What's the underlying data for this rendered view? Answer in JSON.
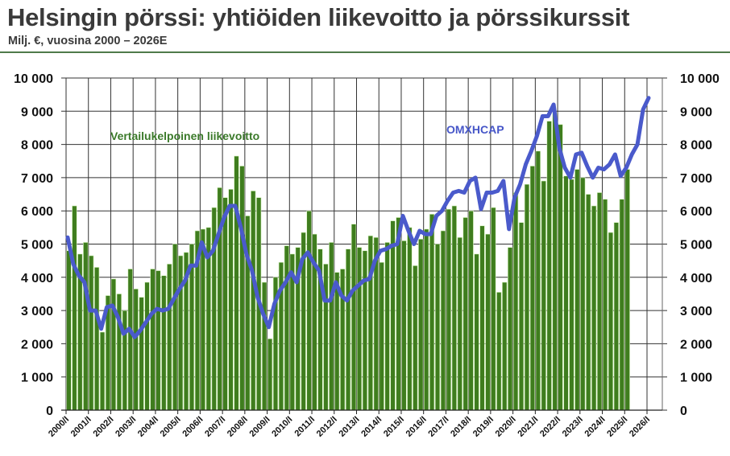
{
  "header": {
    "title": "Helsingin pörssi: yhtiöiden liikevoitto ja pörssikurssit",
    "subtitle": "Milj. €, vuosina 2000 – 2026E"
  },
  "colors": {
    "bar": "#3f7d1e",
    "bar_edge": "#d8f5c0",
    "line": "#4a5acb",
    "grid": "#333333",
    "title": "#3a3a3a",
    "rule": "#4f7a4a"
  },
  "chart_data": {
    "type": "bar+line",
    "title": "Helsingin pörssi: yhtiöiden liikevoitto ja pörssikurssit",
    "subtitle": "Milj. €, vuosina 2000 – 2026E",
    "xlabel": "",
    "ylabel_left": "",
    "ylabel_right": "",
    "ylim": [
      0,
      10000
    ],
    "y2lim": [
      0,
      10000
    ],
    "yticks": [
      "0",
      "1 000",
      "2 000",
      "3 000",
      "4 000",
      "5 000",
      "6 000",
      "7 000",
      "8 000",
      "9 000",
      "10 000"
    ],
    "grid": true,
    "x_tick_labels": [
      "2000/I",
      "2001/I",
      "2002/I",
      "2003/I",
      "2004/I",
      "2005/I",
      "2006/I",
      "2007/I",
      "2008/I",
      "2009/I",
      "2010/I",
      "2011/I",
      "2012/I",
      "2013/I",
      "2014/I",
      "2015/I",
      "2016/I",
      "2017/I",
      "2018/I",
      "2019/I",
      "2020/I",
      "2021/I",
      "2022/I",
      "2023/I",
      "2024/I",
      "2025/I",
      "2026/I"
    ],
    "annotations": [
      {
        "text": "Vertailukelpoinen liikevoitto",
        "series": "bars"
      },
      {
        "text": "OMXHCAP",
        "series": "line"
      }
    ],
    "series": [
      {
        "name": "Vertailukelpoinen liikevoitto",
        "type": "bar",
        "start": "2000/I",
        "frequency": "quarterly",
        "values": [
          4800,
          6150,
          4700,
          5050,
          4650,
          4300,
          2350,
          3450,
          3950,
          3500,
          3000,
          4250,
          3650,
          3400,
          3850,
          4250,
          4200,
          4050,
          4400,
          5000,
          4650,
          4750,
          5000,
          5400,
          5450,
          5500,
          6100,
          6700,
          6400,
          6650,
          7650,
          7350,
          5850,
          6600,
          6400,
          3850,
          2150,
          4000,
          4450,
          4950,
          4700,
          4900,
          5350,
          6000,
          5300,
          4850,
          4400,
          5050,
          4150,
          4250,
          4850,
          5600,
          4900,
          4800,
          5250,
          5200,
          4450,
          5050,
          5700,
          5800,
          5100,
          5500,
          4350,
          5150,
          5450,
          5900,
          5000,
          5400,
          6050,
          6150,
          5200,
          5800,
          6000,
          4700,
          5550,
          5300,
          6100,
          3550,
          3850,
          4900,
          6550,
          5650,
          6800,
          7350,
          7800,
          6900,
          8700,
          8950,
          8600,
          7050,
          6950,
          7250,
          7000,
          6500,
          6150,
          6550,
          6350,
          5350,
          5650,
          6350,
          7250
        ]
      },
      {
        "name": "OMXHCAP",
        "type": "line",
        "start": "2000/I",
        "frequency": "quarterly",
        "values": [
          5200,
          4400,
          4050,
          3850,
          3000,
          3000,
          2450,
          3100,
          3150,
          2800,
          2300,
          2450,
          2200,
          2400,
          2650,
          2900,
          3050,
          3000,
          3050,
          3350,
          3650,
          3900,
          4350,
          4350,
          5050,
          4600,
          4800,
          5300,
          5800,
          6150,
          6150,
          5500,
          4700,
          4200,
          3400,
          2900,
          2500,
          3200,
          3600,
          3850,
          4150,
          3850,
          4550,
          4750,
          4450,
          4200,
          3300,
          3300,
          3850,
          3450,
          3300,
          3600,
          3750,
          3900,
          3950,
          4500,
          4800,
          4850,
          4950,
          5000,
          5850,
          5400,
          5000,
          5400,
          5300,
          5300,
          5850,
          6000,
          6300,
          6550,
          6600,
          6550,
          6900,
          7000,
          6050,
          6550,
          6550,
          6600,
          6900,
          5450,
          6400,
          6800,
          7400,
          7800,
          8250,
          8850,
          8850,
          9200,
          7900,
          7300,
          7000,
          7700,
          7750,
          7350,
          7000,
          7300,
          7250,
          7400,
          7700,
          7050,
          7300,
          7700,
          8000,
          9050,
          9400
        ]
      }
    ]
  }
}
